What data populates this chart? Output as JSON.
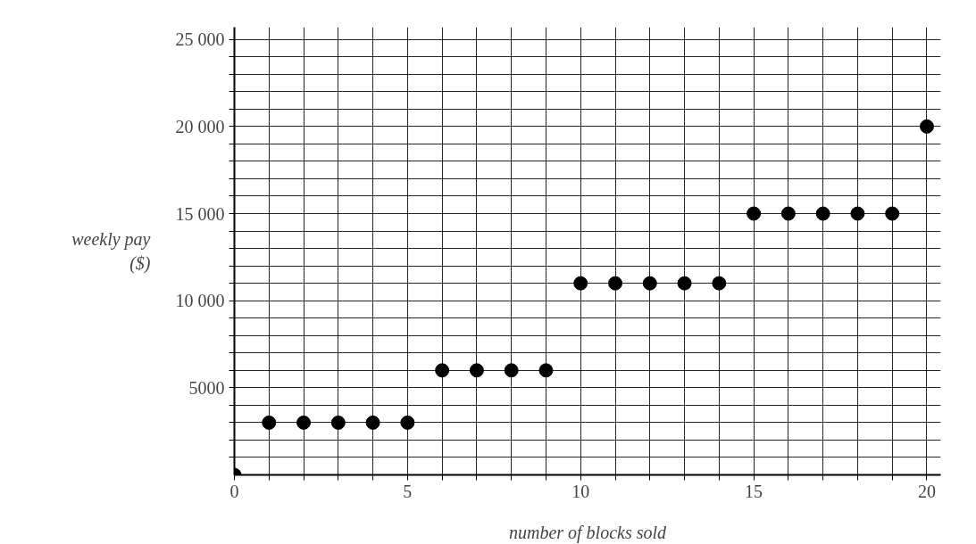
{
  "chart_data": {
    "type": "scatter",
    "xlabel": "number of blocks sold",
    "ylabel": "weekly pay\n($)",
    "x": [
      0,
      1,
      2,
      3,
      4,
      5,
      6,
      7,
      8,
      9,
      10,
      11,
      12,
      13,
      14,
      15,
      16,
      17,
      18,
      19,
      20
    ],
    "series": [
      {
        "color": "#000000",
        "values": [
          0,
          3000,
          3000,
          3000,
          3000,
          3000,
          6000,
          6000,
          6000,
          6000,
          11000,
          11000,
          11000,
          11000,
          11000,
          15000,
          15000,
          15000,
          15000,
          15000,
          20000
        ]
      }
    ],
    "xlim": [
      0,
      20.4
    ],
    "ylim": [
      0,
      25700
    ],
    "xticks": [
      0,
      {
        "value": 1,
        "label": null
      },
      {
        "value": 2,
        "label": null
      },
      {
        "value": 3,
        "label": null
      },
      {
        "value": 4,
        "label": null
      },
      5,
      {
        "value": 6,
        "label": null
      },
      {
        "value": 7,
        "label": null
      },
      {
        "value": 8,
        "label": null
      },
      {
        "value": 9,
        "label": null
      },
      10,
      {
        "value": 11,
        "label": null
      },
      {
        "value": 12,
        "label": null
      },
      {
        "value": 13,
        "label": null
      },
      {
        "value": 14,
        "label": null
      },
      15,
      {
        "value": 16,
        "label": null
      },
      {
        "value": 17,
        "label": null
      },
      {
        "value": 18,
        "label": null
      },
      {
        "value": 19,
        "label": null
      },
      20
    ],
    "yticks": [
      {
        "value": 1000,
        "label": null
      },
      {
        "value": 2000,
        "label": null
      },
      {
        "value": 3000,
        "label": null
      },
      {
        "value": 4000,
        "label": null
      },
      5000,
      {
        "value": 6000,
        "label": null
      },
      {
        "value": 7000,
        "label": null
      },
      {
        "value": 8000,
        "label": null
      },
      {
        "value": 9000,
        "label": null
      },
      {
        "value": 10000,
        "label": "10 000"
      },
      {
        "value": 11000,
        "label": null
      },
      {
        "value": 12000,
        "label": null
      },
      {
        "value": 13000,
        "label": null
      },
      {
        "value": 14000,
        "label": null
      },
      {
        "value": 15000,
        "label": "15 000"
      },
      {
        "value": 16000,
        "label": null
      },
      {
        "value": 17000,
        "label": null
      },
      {
        "value": 18000,
        "label": null
      },
      {
        "value": 19000,
        "label": null
      },
      {
        "value": 20000,
        "label": "20 000"
      },
      {
        "value": 21000,
        "label": null
      },
      {
        "value": 22000,
        "label": null
      },
      {
        "value": 23000,
        "label": null
      },
      {
        "value": 24000,
        "label": null
      },
      {
        "value": 25000,
        "label": "25 000"
      }
    ],
    "grid": true,
    "marker": "circle"
  }
}
